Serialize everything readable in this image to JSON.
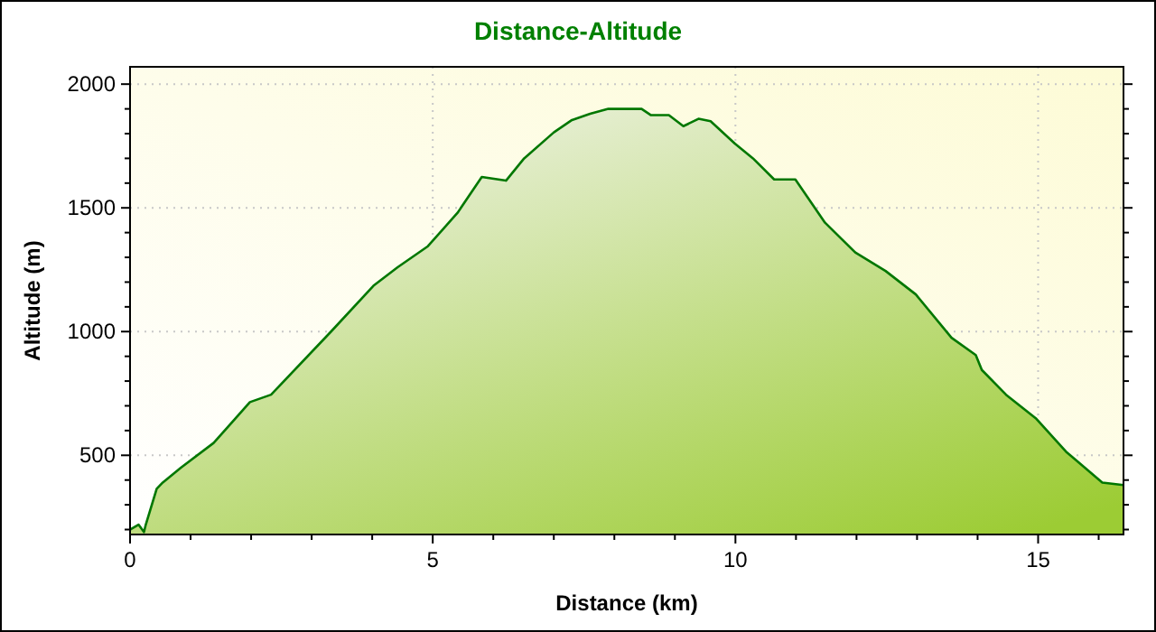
{
  "chart_data": {
    "type": "area",
    "title": "Distance-Altitude",
    "xlabel": "Distance (km)",
    "ylabel": "Altitude (m)",
    "x": [
      0,
      0.14,
      0.23,
      0.26,
      0.44,
      0.54,
      0.84,
      1.38,
      1.98,
      2.33,
      3.32,
      4.02,
      4.42,
      4.92,
      5.41,
      5.81,
      6.21,
      6.51,
      7.0,
      7.3,
      7.6,
      7.9,
      8.45,
      8.6,
      8.9,
      9.14,
      9.39,
      9.59,
      9.99,
      10.29,
      10.64,
      10.99,
      11.48,
      11.98,
      12.48,
      12.98,
      13.57,
      13.97,
      14.07,
      14.47,
      14.96,
      15.46,
      16.06,
      16.41
    ],
    "series": [
      {
        "color": "#007700",
        "values": [
          200,
          220,
          190,
          220,
          365,
          390,
          450,
          550,
          715,
          745,
          1000,
          1185,
          1260,
          1345,
          1480,
          1625,
          1610,
          1700,
          1805,
          1855,
          1880,
          1900,
          1900,
          1875,
          1875,
          1830,
          1860,
          1850,
          1760,
          1700,
          1615,
          1615,
          1440,
          1320,
          1245,
          1150,
          975,
          905,
          845,
          745,
          650,
          515,
          390,
          380
        ]
      }
    ],
    "xlim": [
      0,
      16.41
    ],
    "ylim": [
      180,
      2070
    ],
    "xticks": [
      0,
      {
        "value": 1,
        "label": null
      },
      {
        "value": 2,
        "label": null
      },
      {
        "value": 3,
        "label": null
      },
      {
        "value": 4,
        "label": null
      },
      5,
      {
        "value": 6,
        "label": null
      },
      {
        "value": 7,
        "label": null
      },
      {
        "value": 8,
        "label": null
      },
      {
        "value": 9,
        "label": null
      },
      10,
      {
        "value": 11,
        "label": null
      },
      {
        "value": 12,
        "label": null
      },
      {
        "value": 13,
        "label": null
      },
      {
        "value": 14,
        "label": null
      },
      15,
      {
        "value": 16,
        "label": null
      }
    ],
    "yticks": [
      {
        "value": 200,
        "label": null
      },
      {
        "value": 300,
        "label": null
      },
      {
        "value": 400,
        "label": null
      },
      500,
      {
        "value": 600,
        "label": null
      },
      {
        "value": 700,
        "label": null
      },
      {
        "value": 800,
        "label": null
      },
      {
        "value": 900,
        "label": null
      },
      1000,
      {
        "value": 1100,
        "label": null
      },
      {
        "value": 1200,
        "label": null
      },
      {
        "value": 1300,
        "label": null
      },
      {
        "value": 1400,
        "label": null
      },
      1500,
      {
        "value": 1600,
        "label": null
      },
      {
        "value": 1700,
        "label": null
      },
      {
        "value": 1800,
        "label": null
      },
      {
        "value": 1900,
        "label": null
      },
      2000
    ],
    "grid": true,
    "line_style": "solid"
  }
}
